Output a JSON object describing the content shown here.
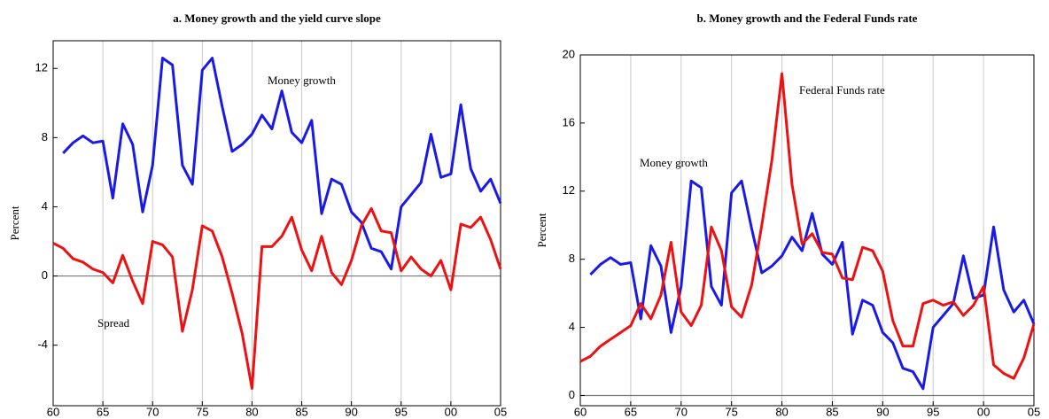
{
  "chart_data": [
    {
      "type": "line",
      "title": "a. Money growth and the yield curve slope",
      "y_label": "Percent",
      "x": [
        1960,
        1961,
        1962,
        1963,
        1964,
        1965,
        1966,
        1967,
        1968,
        1969,
        1970,
        1971,
        1972,
        1973,
        1974,
        1975,
        1976,
        1977,
        1978,
        1979,
        1980,
        1981,
        1982,
        1983,
        1984,
        1985,
        1986,
        1987,
        1988,
        1989,
        1990,
        1991,
        1992,
        1993,
        1994,
        1995,
        1996,
        1997,
        1998,
        1999,
        2000,
        2001,
        2002,
        2003,
        2004,
        2005
      ],
      "series": [
        {
          "name": "Money growth",
          "color": "#1a1ae6",
          "values": [
            null,
            7.1,
            7.7,
            8.1,
            7.7,
            7.8,
            4.5,
            8.8,
            7.6,
            3.7,
            6.4,
            12.6,
            12.2,
            6.4,
            5.3,
            11.9,
            12.6,
            9.8,
            7.2,
            7.6,
            8.2,
            9.3,
            8.5,
            10.7,
            8.3,
            7.7,
            9.0,
            3.6,
            5.6,
            5.3,
            3.7,
            3.1,
            1.6,
            1.4,
            0.4,
            4.0,
            4.7,
            5.4,
            8.2,
            5.7,
            5.9,
            9.9,
            6.2,
            4.9,
            5.6,
            4.2
          ]
        },
        {
          "name": "Spread",
          "color": "#ee1111",
          "values": [
            1.9,
            1.6,
            1.0,
            0.8,
            0.4,
            0.2,
            -0.4,
            1.2,
            -0.3,
            -1.6,
            2.0,
            1.8,
            1.1,
            -3.2,
            -0.8,
            2.9,
            2.6,
            1.1,
            -1.0,
            -3.3,
            -6.5,
            1.7,
            1.7,
            2.3,
            3.4,
            1.5,
            0.3,
            2.3,
            0.2,
            -0.5,
            0.9,
            2.9,
            3.9,
            2.6,
            2.5,
            0.3,
            1.1,
            0.4,
            0.0,
            0.9,
            -0.8,
            3.0,
            2.8,
            3.4,
            2.1,
            0.4
          ]
        }
      ],
      "xlim": [
        1960,
        2005
      ],
      "xticks": [
        {
          "value": 1960,
          "label": "60"
        },
        {
          "value": 1965,
          "label": "65"
        },
        {
          "value": 1970,
          "label": "70"
        },
        {
          "value": 1975,
          "label": "75"
        },
        {
          "value": 1980,
          "label": "80"
        },
        {
          "value": 1985,
          "label": "85"
        },
        {
          "value": 1990,
          "label": "90"
        },
        {
          "value": 1995,
          "label": "95"
        },
        {
          "value": 2000,
          "label": "00"
        },
        {
          "value": 2005,
          "label": "05"
        }
      ],
      "ylim": [
        -7.5,
        13.6
      ],
      "yticks": [
        -4,
        0,
        4,
        8,
        12
      ],
      "grid": true
    },
    {
      "type": "line",
      "title": "b. Money growth and the Federal Funds rate",
      "y_label": "Percent",
      "x": [
        1960,
        1961,
        1962,
        1963,
        1964,
        1965,
        1966,
        1967,
        1968,
        1969,
        1970,
        1971,
        1972,
        1973,
        1974,
        1975,
        1976,
        1977,
        1978,
        1979,
        1980,
        1981,
        1982,
        1983,
        1984,
        1985,
        1986,
        1987,
        1988,
        1989,
        1990,
        1991,
        1992,
        1993,
        1994,
        1995,
        1996,
        1997,
        1998,
        1999,
        2000,
        2001,
        2002,
        2003,
        2004,
        2005
      ],
      "series": [
        {
          "name": "Money growth",
          "color": "#1a1ae6",
          "values": [
            null,
            7.1,
            7.7,
            8.1,
            7.7,
            7.8,
            4.5,
            8.8,
            7.6,
            3.7,
            6.4,
            12.6,
            12.2,
            6.4,
            5.3,
            11.9,
            12.6,
            9.8,
            7.2,
            7.6,
            8.2,
            9.3,
            8.5,
            10.7,
            8.3,
            7.7,
            9.0,
            3.6,
            5.6,
            5.3,
            3.7,
            3.1,
            1.6,
            1.4,
            0.4,
            4.0,
            4.7,
            5.4,
            8.2,
            5.7,
            5.9,
            9.9,
            6.2,
            4.9,
            5.6,
            4.2
          ]
        },
        {
          "name": "Federal Funds rate",
          "color": "#ee1111",
          "values": [
            2.0,
            2.3,
            2.9,
            3.3,
            3.7,
            4.1,
            5.4,
            4.5,
            5.9,
            9.0,
            4.9,
            4.1,
            5.3,
            9.9,
            8.5,
            5.2,
            4.6,
            6.5,
            10.0,
            13.8,
            18.9,
            12.4,
            8.9,
            9.5,
            8.4,
            8.3,
            6.9,
            6.8,
            8.7,
            8.5,
            7.3,
            4.4,
            2.9,
            2.9,
            5.4,
            5.6,
            5.3,
            5.5,
            4.7,
            5.3,
            6.4,
            1.8,
            1.3,
            1.0,
            2.2,
            4.2
          ]
        }
      ],
      "xlim": [
        1960,
        2005
      ],
      "xticks": [
        {
          "value": 1960,
          "label": "60"
        },
        {
          "value": 1965,
          "label": "65"
        },
        {
          "value": 1970,
          "label": "70"
        },
        {
          "value": 1975,
          "label": "75"
        },
        {
          "value": 1980,
          "label": "80"
        },
        {
          "value": 1985,
          "label": "85"
        },
        {
          "value": 1990,
          "label": "90"
        },
        {
          "value": 1995,
          "label": "95"
        },
        {
          "value": 2000,
          "label": "00"
        },
        {
          "value": 2005,
          "label": "05"
        }
      ],
      "ylim": [
        -0.6,
        20
      ],
      "yticks": [
        0,
        4,
        8,
        12,
        16,
        20
      ],
      "grid": true
    }
  ]
}
